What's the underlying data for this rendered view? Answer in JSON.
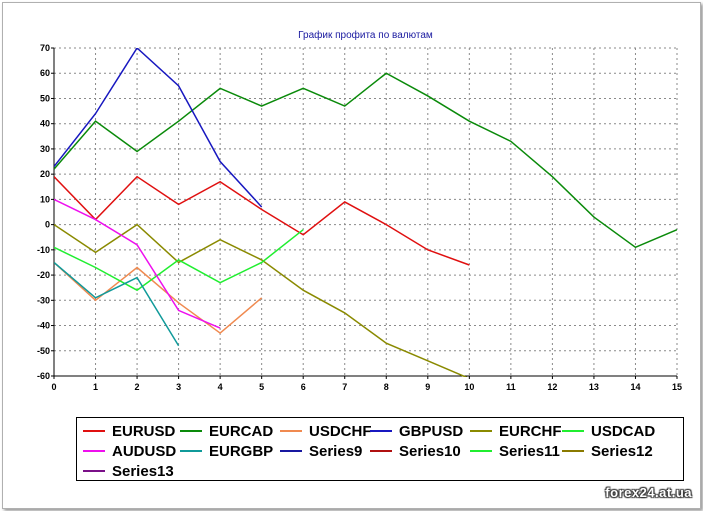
{
  "chart_data": {
    "type": "line",
    "title": "График профита по валютам",
    "xlabel": "",
    "ylabel": "",
    "xlim": [
      0,
      15
    ],
    "ylim": [
      -60,
      70
    ],
    "xticks": [
      0,
      1,
      2,
      3,
      4,
      5,
      6,
      7,
      8,
      9,
      10,
      11,
      12,
      13,
      14,
      15
    ],
    "yticks": [
      70,
      60,
      50,
      40,
      30,
      20,
      10,
      0,
      -10,
      -20,
      -30,
      -40,
      -50,
      -60
    ],
    "grid": true,
    "legend_position": "bottom",
    "series": [
      {
        "name": "EURUSD",
        "color": "#e01010",
        "x": [
          0,
          1,
          2,
          3,
          4,
          5,
          6,
          7,
          8,
          9,
          10
        ],
        "values": [
          19,
          2,
          19,
          8,
          17,
          6,
          -4,
          9,
          0,
          -10,
          -16
        ]
      },
      {
        "name": "EURCAD",
        "color": "#0a8a0a",
        "x": [
          0,
          1,
          2,
          3,
          4,
          5,
          6,
          7,
          8,
          9,
          10,
          11,
          12,
          13,
          14,
          15
        ],
        "values": [
          22,
          41,
          29,
          41,
          54,
          47,
          54,
          47,
          60,
          51,
          41,
          33,
          19,
          3,
          -9,
          -2
        ]
      },
      {
        "name": "USDCHF",
        "color": "#f08a50",
        "x": [
          0,
          1,
          2,
          3,
          4,
          5
        ],
        "values": [
          -15,
          -30,
          -17,
          -31,
          -43,
          -29
        ]
      },
      {
        "name": "GBPUSD",
        "color": "#1818c0",
        "x": [
          0,
          1,
          2,
          3,
          4,
          5
        ],
        "values": [
          23,
          44,
          70,
          55,
          25,
          7
        ]
      },
      {
        "name": "EURCHF",
        "color": "#8a8a00",
        "x": [
          0,
          1,
          2,
          3,
          4,
          5,
          6,
          7,
          8,
          9,
          10
        ],
        "values": [
          0,
          -11,
          0,
          -15,
          -6,
          -14,
          -26,
          -35,
          -47,
          -54,
          -61
        ]
      },
      {
        "name": "USDCAD",
        "color": "#20ee30",
        "x": [
          0,
          1,
          2,
          3,
          4,
          5,
          6
        ],
        "values": [
          -9,
          -17,
          -26,
          -14,
          -23,
          -15,
          -2
        ]
      },
      {
        "name": "AUDUSD",
        "color": "#ee10ee",
        "x": [
          0,
          1,
          2,
          3,
          4
        ],
        "values": [
          10,
          2,
          -8,
          -34,
          -41
        ]
      },
      {
        "name": "EURGBP",
        "color": "#109a9a",
        "x": [
          0,
          1,
          2,
          3
        ],
        "values": [
          -15,
          -29,
          -21,
          -48
        ]
      },
      {
        "name": "Series9",
        "color": "#1818a0",
        "x": [],
        "values": []
      },
      {
        "name": "Series10",
        "color": "#b01010",
        "x": [],
        "values": []
      },
      {
        "name": "Series11",
        "color": "#20ee30",
        "x": [],
        "values": []
      },
      {
        "name": "Series12",
        "color": "#8a7a00",
        "x": [],
        "values": []
      },
      {
        "name": "Series13",
        "color": "#7a1088",
        "x": [],
        "values": []
      }
    ]
  },
  "watermark": "forex24.at.ua"
}
